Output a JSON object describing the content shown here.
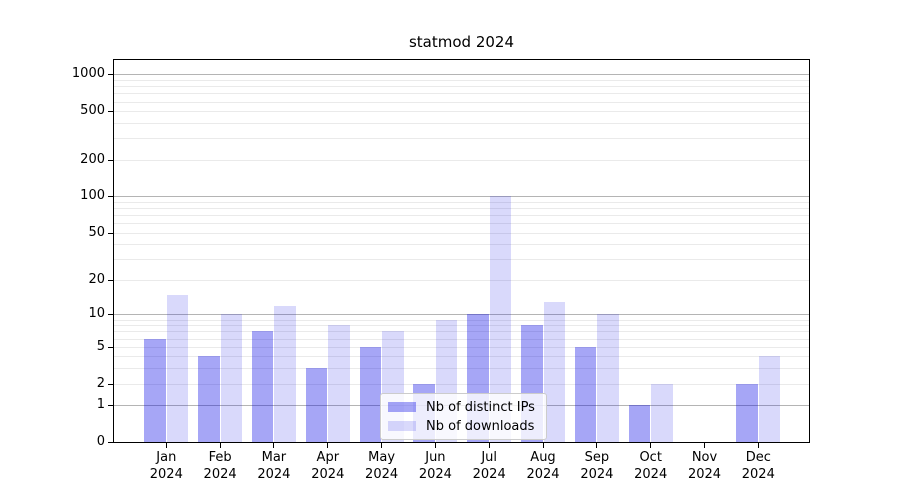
{
  "chart_data": {
    "type": "bar",
    "title": "statmod 2024",
    "x_tick_labels": [
      [
        "Jan",
        "2024"
      ],
      [
        "Feb",
        "2024"
      ],
      [
        "Mar",
        "2024"
      ],
      [
        "Apr",
        "2024"
      ],
      [
        "May",
        "2024"
      ],
      [
        "Jun",
        "2024"
      ],
      [
        "Jul",
        "2024"
      ],
      [
        "Aug",
        "2024"
      ],
      [
        "Sep",
        "2024"
      ],
      [
        "Oct",
        "2024"
      ],
      [
        "Nov",
        "2024"
      ],
      [
        "Dec",
        "2024"
      ]
    ],
    "series": [
      {
        "name": "Nb of distinct IPs",
        "color_hex": "#0000e6",
        "alpha": 0.35,
        "values": [
          6,
          4,
          7,
          3,
          5,
          2,
          10,
          8,
          5,
          1,
          0,
          2
        ]
      },
      {
        "name": "Nb of downloads",
        "color_hex": "#0000e6",
        "alpha": 0.15,
        "values": [
          15,
          10,
          12,
          8,
          7,
          9,
          100,
          13,
          10,
          2,
          0,
          4
        ]
      }
    ],
    "y_scale": "log1p",
    "y_ticks": [
      0,
      1,
      2,
      5,
      10,
      20,
      50,
      100,
      200,
      500,
      1000
    ],
    "y_top": 1310,
    "grid": {
      "major_at": [
        1,
        10,
        100,
        1000
      ],
      "major_color": "#b4b4b4",
      "minor_color": "#eaeaea"
    },
    "legend_position": "bottom-center",
    "axis_color": "#000000",
    "background_color": "#ffffff"
  }
}
